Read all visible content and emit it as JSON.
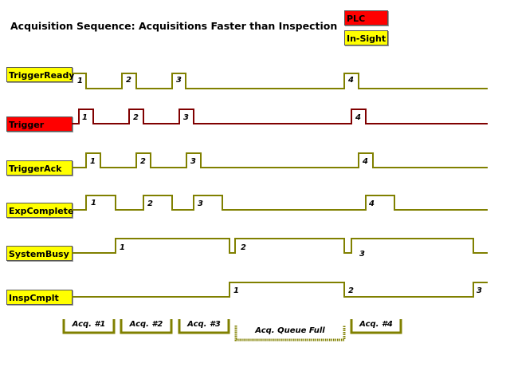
{
  "title": "Acquisition Sequence: Acquisitions Faster than Inspection",
  "legend": [
    {
      "label": "PLC",
      "color": "#ff0000"
    },
    {
      "label": "In-Sight",
      "color": "#ffff00"
    }
  ],
  "colors": {
    "in_sight_line": "#808000",
    "plc_line": "#800000"
  },
  "signals": [
    {
      "name": "TriggerReady",
      "owner": "In-Sight",
      "pulse_labels": [
        "1",
        "2",
        "3",
        "4"
      ]
    },
    {
      "name": "Trigger",
      "owner": "PLC",
      "pulse_labels": [
        "1",
        "2",
        "3",
        "4"
      ]
    },
    {
      "name": "TriggerAck",
      "owner": "In-Sight",
      "pulse_labels": [
        "1",
        "2",
        "3",
        "4"
      ]
    },
    {
      "name": "ExpComplete",
      "owner": "In-Sight",
      "pulse_labels": [
        "1",
        "2",
        "3",
        "4"
      ]
    },
    {
      "name": "SystemBusy",
      "owner": "In-Sight",
      "pulse_labels": [
        "1",
        "2",
        "3"
      ]
    },
    {
      "name": "InspCmplt",
      "owner": "In-Sight",
      "pulse_labels": [
        "1",
        "2",
        "3"
      ]
    }
  ],
  "phases": [
    {
      "label": "Acq. #1",
      "style": "solid"
    },
    {
      "label": "Acq. #2",
      "style": "solid"
    },
    {
      "label": "Acq. #3",
      "style": "solid"
    },
    {
      "label": "Acq. Queue Full",
      "style": "dotted"
    },
    {
      "label": "Acq. #4",
      "style": "solid"
    }
  ]
}
